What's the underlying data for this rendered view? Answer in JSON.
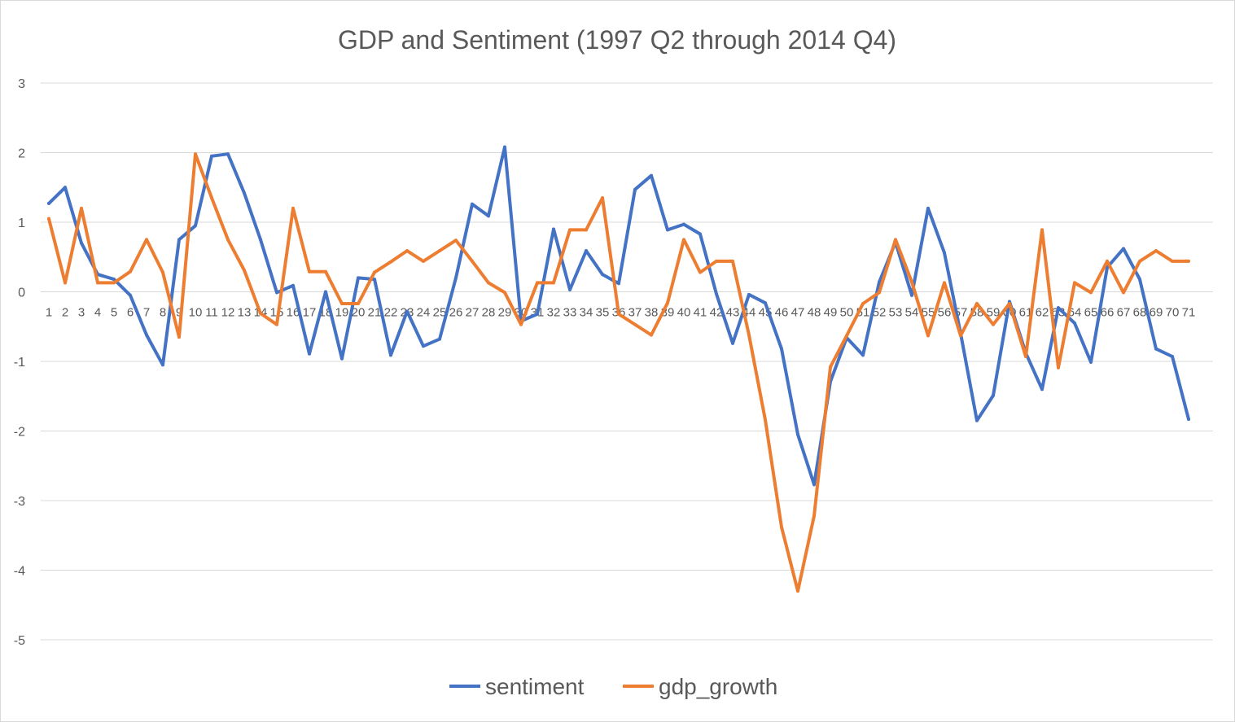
{
  "chart_data": {
    "type": "line",
    "title": "GDP and Sentiment (1997 Q2 through 2014 Q4)",
    "xlabel": "",
    "ylabel": "",
    "ylim": [
      -5,
      3
    ],
    "yticks": [
      3,
      2,
      1,
      0,
      -1,
      -2,
      -3,
      -4,
      -5
    ],
    "grid": true,
    "legend_position": "bottom",
    "categories": [
      1,
      2,
      3,
      4,
      5,
      6,
      7,
      8,
      9,
      10,
      11,
      12,
      13,
      14,
      15,
      16,
      17,
      18,
      19,
      20,
      21,
      22,
      23,
      24,
      25,
      26,
      27,
      28,
      29,
      30,
      31,
      32,
      33,
      34,
      35,
      36,
      37,
      38,
      39,
      40,
      41,
      42,
      43,
      44,
      45,
      46,
      47,
      48,
      49,
      50,
      51,
      52,
      53,
      54,
      55,
      56,
      57,
      58,
      59,
      60,
      61,
      62,
      63,
      64,
      65,
      66,
      67,
      68,
      69,
      70,
      71
    ],
    "series": [
      {
        "name": "sentiment",
        "color": "#4472c4",
        "values": [
          1.27,
          1.5,
          0.7,
          0.25,
          0.18,
          -0.05,
          -0.62,
          -1.05,
          0.75,
          0.95,
          1.95,
          1.98,
          1.42,
          0.75,
          -0.01,
          0.09,
          -0.89,
          0.0,
          -0.96,
          0.2,
          0.18,
          -0.91,
          -0.28,
          -0.78,
          -0.68,
          0.2,
          1.26,
          1.09,
          2.08,
          -0.42,
          -0.32,
          0.9,
          0.03,
          0.59,
          0.25,
          0.12,
          1.47,
          1.67,
          0.89,
          0.97,
          0.83,
          -0.03,
          -0.74,
          -0.04,
          -0.16,
          -0.82,
          -2.05,
          -2.77,
          -1.29,
          -0.66,
          -0.91,
          0.14,
          0.71,
          -0.05,
          1.2,
          0.56,
          -0.6,
          -1.85,
          -1.49,
          -0.14,
          -0.88,
          -1.4,
          -0.23,
          -0.45,
          -1.01,
          0.35,
          0.62,
          0.18,
          -0.82,
          -0.93,
          -1.83
        ]
      },
      {
        "name": "gdp_growth",
        "color": "#ed7d31",
        "values": [
          1.05,
          0.13,
          1.2,
          0.13,
          0.13,
          0.29,
          0.75,
          0.28,
          -0.65,
          1.98,
          1.35,
          0.75,
          0.31,
          -0.31,
          -0.47,
          1.2,
          0.29,
          0.29,
          -0.17,
          -0.17,
          0.28,
          0.43,
          0.59,
          0.44,
          0.59,
          0.74,
          0.44,
          0.13,
          -0.01,
          -0.47,
          0.13,
          0.13,
          0.89,
          0.89,
          1.35,
          -0.32,
          -0.47,
          -0.62,
          -0.16,
          0.75,
          0.28,
          0.44,
          0.44,
          -0.62,
          -1.84,
          -3.38,
          -4.3,
          -3.22,
          -1.08,
          -0.63,
          -0.17,
          -0.01,
          0.75,
          0.14,
          -0.63,
          0.13,
          -0.63,
          -0.17,
          -0.47,
          -0.17,
          -0.93,
          0.89,
          -1.09,
          0.13,
          -0.01,
          0.44,
          -0.01,
          0.44,
          0.59,
          0.44,
          0.44
        ]
      }
    ]
  }
}
